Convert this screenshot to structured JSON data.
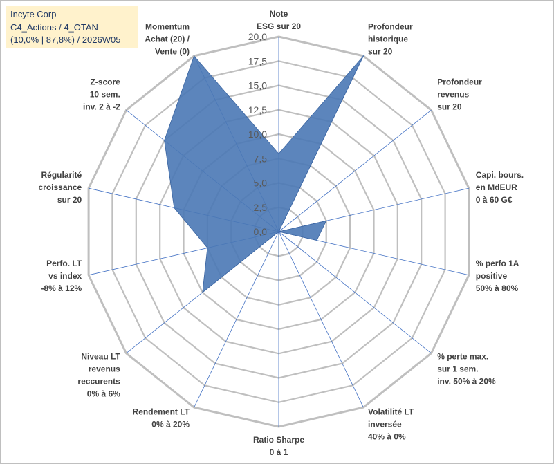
{
  "header": {
    "line1": "Incyte Corp",
    "line2": "C4_Actions / 4_OTAN",
    "line3": "(10,0% | 87,8%) / 2026W05"
  },
  "colors": {
    "grid": "#bfbfbf",
    "spoke": "#4472c4",
    "fill": "#4a78b5",
    "label": "#404040",
    "tick": "#595959"
  },
  "chart_data": {
    "type": "radar",
    "title": "",
    "rmax": 20,
    "ticks": [
      "0,0",
      "2,5",
      "5,0",
      "7,5",
      "10,0",
      "12,5",
      "15,0",
      "17,5",
      "20,0"
    ],
    "axes": [
      {
        "label": [
          "Note",
          "ESG sur 20"
        ],
        "value": 8
      },
      {
        "label": [
          "Profondeur",
          "historique",
          "sur 20"
        ],
        "value": 20
      },
      {
        "label": [
          "Profondeur",
          "revenus",
          "sur 20"
        ],
        "value": 0
      },
      {
        "label": [
          "Capi. bours.",
          "en MdEUR",
          "0 à 60 G€"
        ],
        "value": 5
      },
      {
        "label": [
          "% perfo 1A",
          "positive",
          "50% à 80%"
        ],
        "value": 4
      },
      {
        "label": [
          "% perte max.",
          "sur 1 sem.",
          "inv. 50% à 20%"
        ],
        "value": 0
      },
      {
        "label": [
          "Volatilité LT",
          "inversée",
          "40% à 0%"
        ],
        "value": 0
      },
      {
        "label": [
          "Ratio Sharpe",
          "0 à 1"
        ],
        "value": 2.5
      },
      {
        "label": [
          "Rendement LT",
          "0% à 20%"
        ],
        "value": 0
      },
      {
        "label": [
          "Niveau LT",
          "revenus",
          "reccurents",
          "0% à 6%"
        ],
        "value": 10
      },
      {
        "label": [
          "Perfo. LT",
          "vs index",
          "-8% à 12%"
        ],
        "value": 7.5
      },
      {
        "label": [
          "Régularité",
          "croissance",
          "sur 20"
        ],
        "value": 11
      },
      {
        "label": [
          "Z-score",
          "10 sem.",
          "inv. 2 à -2"
        ],
        "value": 15
      },
      {
        "label": [
          "Momentum",
          "Achat (20) /",
          "Vente (0)"
        ],
        "value": 20
      }
    ]
  }
}
